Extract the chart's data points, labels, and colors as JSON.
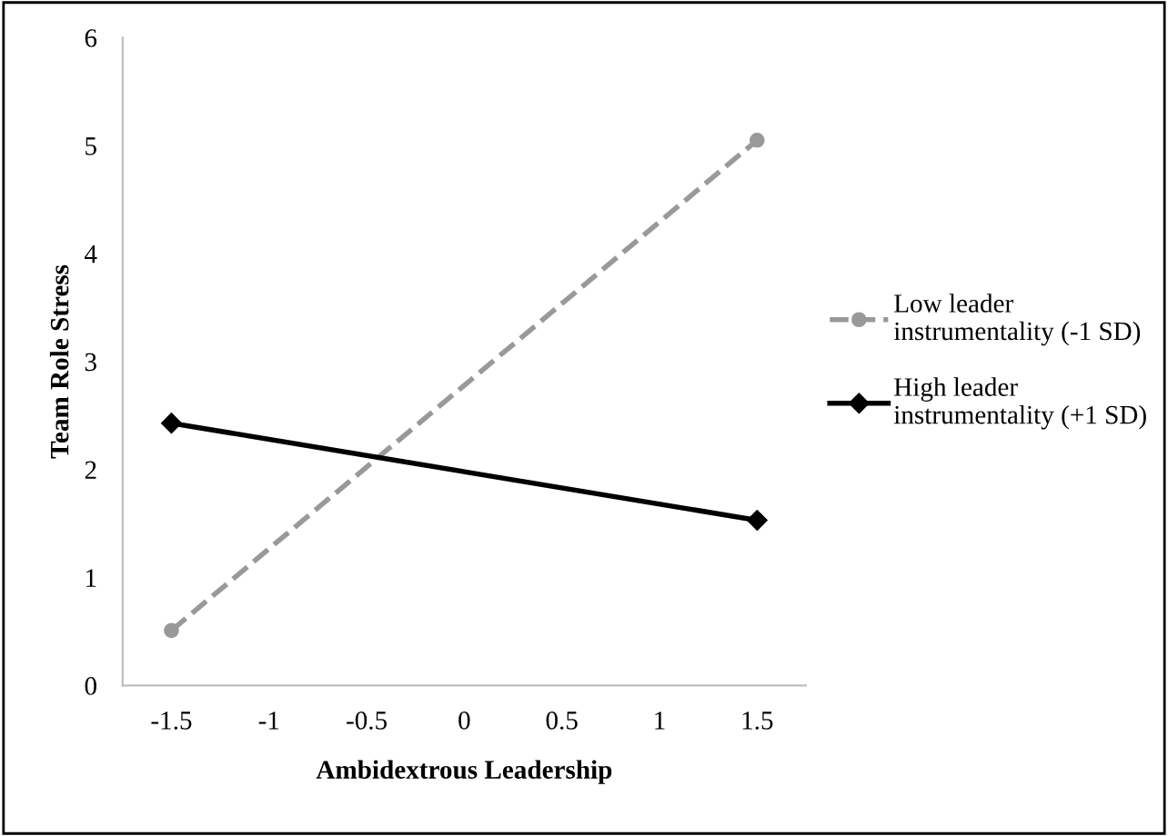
{
  "chart_data": {
    "type": "line",
    "xlabel": "Ambidextrous Leadership",
    "ylabel": "Team Role Stress",
    "xlim": [
      -1.75,
      1.75
    ],
    "xticks": [
      -1.5,
      -1,
      -0.5,
      0,
      0.5,
      1,
      1.5
    ],
    "x": [
      -1.5,
      1.5
    ],
    "ylim": [
      0,
      6
    ],
    "yticks": [
      0,
      1,
      2,
      3,
      4,
      5,
      6
    ],
    "grid": false,
    "legend": "right",
    "series": [
      {
        "name": "Low leader instrumentality (-1 SD)",
        "color": "#999999",
        "values": [
          0.51,
          5.05
        ],
        "marker": "circle",
        "line_style": "dashed"
      },
      {
        "name": "High leader instrumentality (+1 SD)",
        "color": "#000000",
        "values": [
          2.43,
          1.53
        ],
        "marker": "diamond",
        "line_style": "solid"
      }
    ]
  }
}
